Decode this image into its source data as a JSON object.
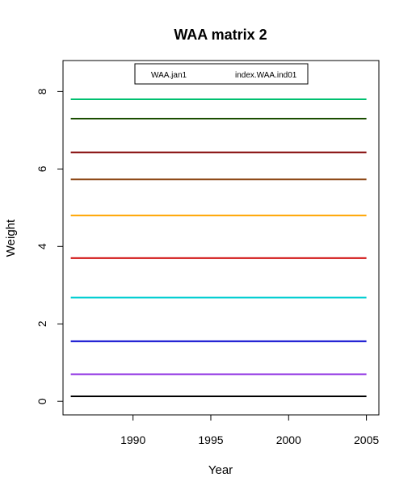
{
  "chart_data": {
    "type": "line",
    "title": "WAA matrix 2",
    "xlabel": "Year",
    "ylabel": "Weight",
    "xlim": [
      1985.5,
      2005.8
    ],
    "ylim": [
      -0.35,
      8.8
    ],
    "x_ticks": [
      1990,
      1995,
      2000,
      2005
    ],
    "y_ticks": [
      0,
      2,
      4,
      6,
      8
    ],
    "x": [
      1986,
      2005
    ],
    "grid": false,
    "legend": {
      "placement": "top",
      "entries": [
        "WAA.jan1",
        "index.WAA.ind01"
      ]
    },
    "series": [
      {
        "color": "#000000",
        "values": [
          0.13,
          0.13
        ]
      },
      {
        "color": "#8b2be2",
        "values": [
          0.7,
          0.7
        ]
      },
      {
        "color": "#0000cd",
        "values": [
          1.55,
          1.55
        ]
      },
      {
        "color": "#00ced1",
        "values": [
          2.68,
          2.68
        ]
      },
      {
        "color": "#cd0000",
        "values": [
          3.7,
          3.7
        ]
      },
      {
        "color": "#ffa500",
        "values": [
          4.8,
          4.8
        ]
      },
      {
        "color": "#8b4513",
        "values": [
          5.73,
          5.73
        ]
      },
      {
        "color": "#800000",
        "values": [
          6.43,
          6.43
        ]
      },
      {
        "color": "#1a4d00",
        "values": [
          7.3,
          7.3
        ]
      },
      {
        "color": "#00c070",
        "values": [
          7.8,
          7.8
        ]
      }
    ]
  }
}
